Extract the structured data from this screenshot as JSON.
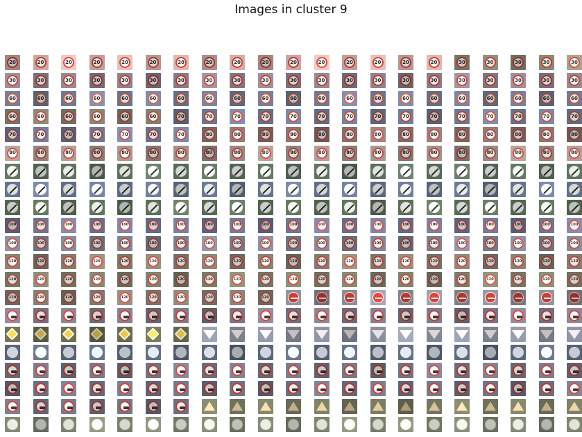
{
  "title": "Images in cluster 9",
  "colors": {
    "background": "#ffffff",
    "title_text": "#111111",
    "sign_red": "#c0392b",
    "sign_white": "#f2f2f2",
    "sign_gray_blue": "#7d8aa6",
    "sign_blue": "#3b6fb0"
  },
  "rows": [
    {
      "kind": "speed",
      "label": "20",
      "bg": "#c9a8a3",
      "ring": "#c23a2f",
      "alt": {
        "from": 16,
        "label": "30",
        "bg": "#8a8a78"
      }
    },
    {
      "kind": "speed",
      "label": "30",
      "bg": "#8a7d86",
      "ring": "#b03a35"
    },
    {
      "kind": "speed",
      "label": "60",
      "bg": "#6e7a9a",
      "ring": "#c45a3a"
    },
    {
      "kind": "speed",
      "label": "60",
      "bg": "#7a7a72",
      "ring": "#b8472f",
      "alt": {
        "from": 6,
        "label": "70",
        "bg": "#6a7898"
      }
    },
    {
      "kind": "speed",
      "label": "70",
      "bg": "#6f7896",
      "ring": "#a94a44",
      "alt": {
        "from": 7,
        "label": "80",
        "bg": "#8b6f6a"
      }
    },
    {
      "kind": "speed",
      "label": "80",
      "bg": "#9a8a86",
      "ring": "#b54437"
    },
    {
      "kind": "end",
      "label": "",
      "bg": "#5c6e5e",
      "ring": "#d0d6d0"
    },
    {
      "kind": "end",
      "label": "",
      "bg": "#66748f",
      "ring": "#d3d7df"
    },
    {
      "kind": "end",
      "label": "",
      "bg": "#5f6e5a",
      "ring": "#d6dbd2"
    },
    {
      "kind": "speed",
      "label": "100",
      "bg": "#6c7698",
      "ring": "#c04a3e"
    },
    {
      "kind": "speed",
      "label": "100",
      "bg": "#7a8190",
      "ring": "#b84a40"
    },
    {
      "kind": "speed",
      "label": "120",
      "bg": "#857c70",
      "ring": "#b8473b"
    },
    {
      "kind": "speed",
      "label": "120",
      "bg": "#7b7d6a",
      "ring": "#b94a3a"
    },
    {
      "kind": "speed",
      "label": "120",
      "bg": "#7e7a6f",
      "ring": "#b94a3a",
      "alt": {
        "from": 10,
        "kind": "noentry",
        "bg": "#8b8d96"
      }
    },
    {
      "kind": "nopass",
      "label": "",
      "bg": "#7b7685",
      "ring": "#c03a32"
    },
    {
      "kind": "diamond",
      "label": "",
      "bg": "#6a6a4e",
      "ring": "#e0c040",
      "alt": {
        "from": 7,
        "kind": "yield",
        "bg": "#8a8f9d"
      }
    },
    {
      "kind": "blue",
      "label": "",
      "bg": "#5d6676",
      "ring": "#d8dde5"
    },
    {
      "kind": "truck",
      "label": "",
      "bg": "#6f7485",
      "ring": "#c33a30"
    },
    {
      "kind": "truck",
      "label": "",
      "bg": "#6a6f80",
      "ring": "#c8382f"
    },
    {
      "kind": "truck",
      "label": "",
      "bg": "#6d7080",
      "ring": "#c13b33",
      "alt": {
        "from": 7,
        "kind": "warn",
        "bg": "#75775e"
      }
    },
    {
      "kind": "round",
      "label": "",
      "bg": "#7f8470",
      "ring": "#c9cfb8"
    }
  ]
}
